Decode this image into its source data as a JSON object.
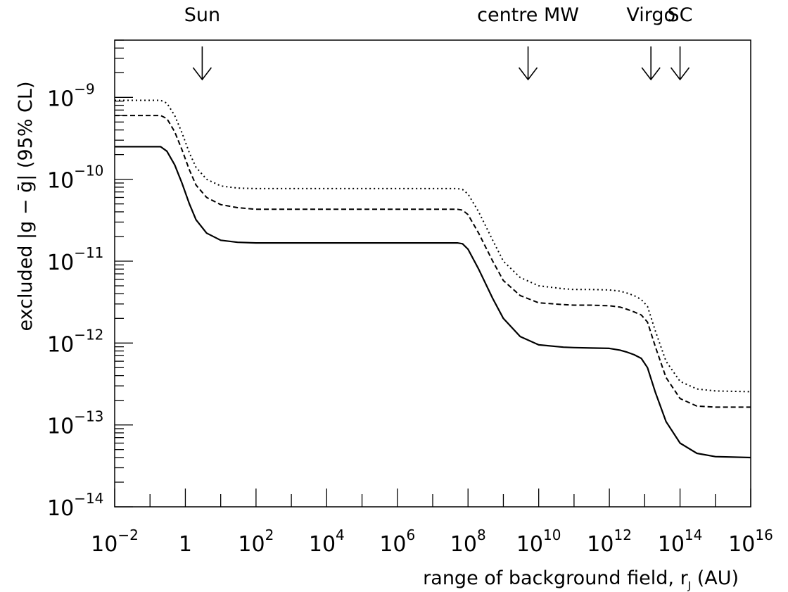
{
  "chart_data": {
    "type": "line",
    "xlabel": "range of background field, r",
    "xlabel_subscript": "J",
    "xlabel_unit": " (AU)",
    "ylabel": "excluded |g − ḡ| (95% CL)",
    "x_scale": "log",
    "y_scale": "log",
    "xlim": [
      0.01,
      1e+16
    ],
    "ylim": [
      1e-14,
      5e-09
    ],
    "grid": false,
    "x_ticks": [
      {
        "base": "10",
        "exp": "−2"
      },
      {
        "base": "1",
        "exp": ""
      },
      {
        "base": "10",
        "exp": "2"
      },
      {
        "base": "10",
        "exp": "4"
      },
      {
        "base": "10",
        "exp": "6"
      },
      {
        "base": "10",
        "exp": "8"
      },
      {
        "base": "10",
        "exp": "10"
      },
      {
        "base": "10",
        "exp": "12"
      },
      {
        "base": "10",
        "exp": "14"
      },
      {
        "base": "10",
        "exp": "16"
      }
    ],
    "y_ticks": [
      {
        "base": "10",
        "exp": "−9"
      },
      {
        "base": "10",
        "exp": "−10"
      },
      {
        "base": "10",
        "exp": "−11"
      },
      {
        "base": "10",
        "exp": "−12"
      },
      {
        "base": "10",
        "exp": "−13"
      },
      {
        "base": "10",
        "exp": "−14"
      }
    ],
    "markers": [
      {
        "label": "Sun",
        "x": 3
      },
      {
        "label": "centre MW",
        "x": 5000000000.0
      },
      {
        "label": "Virgo",
        "x": 15000000000000.0
      },
      {
        "label": "SC",
        "x": 100000000000000.0
      }
    ],
    "series": [
      {
        "style": "solid",
        "x": [
          0.01,
          0.1,
          0.2,
          0.3,
          0.5,
          0.8,
          1.3,
          2,
          4,
          10,
          30,
          100,
          1000.0,
          1000000.0,
          10000000.0,
          30000000.0,
          50000000.0,
          70000000.0,
          100000000.0,
          200000000.0,
          500000000.0,
          1000000000.0,
          3000000000.0,
          10000000000.0,
          50000000000.0,
          100000000000.0,
          300000000000.0,
          1000000000000.0,
          2000000000000.0,
          3000000000000.0,
          5000000000000.0,
          8000000000000.0,
          12000000000000.0,
          20000000000000.0,
          40000000000000.0,
          100000000000000.0,
          300000000000000.0,
          1000000000000000.0,
          1e+16
        ],
        "y": [
          2.5e-10,
          2.5e-10,
          2.5e-10,
          2.2e-10,
          1.5e-10,
          9e-11,
          5e-11,
          3.2e-11,
          2.2e-11,
          1.8e-11,
          1.7e-11,
          1.67e-11,
          1.67e-11,
          1.67e-11,
          1.67e-11,
          1.67e-11,
          1.67e-11,
          1.63e-11,
          1.4e-11,
          8e-12,
          3.5e-12,
          2e-12,
          1.2e-12,
          9.5e-13,
          8.9e-13,
          8.8e-13,
          8.7e-13,
          8.6e-13,
          8.2e-13,
          7.8e-13,
          7.2e-13,
          6.5e-13,
          5e-13,
          2.5e-13,
          1.1e-13,
          6e-14,
          4.5e-14,
          4.1e-14,
          4e-14
        ]
      },
      {
        "style": "dashed",
        "x": [
          0.01,
          0.1,
          0.2,
          0.3,
          0.5,
          0.8,
          1.3,
          2,
          4,
          10,
          30,
          100,
          1000.0,
          1000000.0,
          10000000.0,
          30000000.0,
          50000000.0,
          70000000.0,
          100000000.0,
          200000000.0,
          500000000.0,
          1000000000.0,
          3000000000.0,
          10000000000.0,
          50000000000.0,
          100000000000.0,
          300000000000.0,
          1000000000000.0,
          2000000000000.0,
          3000000000000.0,
          5000000000000.0,
          8000000000000.0,
          12000000000000.0,
          20000000000000.0,
          40000000000000.0,
          100000000000000.0,
          300000000000000.0,
          1000000000000000.0,
          1e+16
        ],
        "y": [
          6e-10,
          6e-10,
          6e-10,
          5.5e-10,
          3.8e-10,
          2.3e-10,
          1.3e-10,
          8.5e-11,
          6e-11,
          4.9e-11,
          4.5e-11,
          4.3e-11,
          4.3e-11,
          4.3e-11,
          4.3e-11,
          4.3e-11,
          4.3e-11,
          4.2e-11,
          3.7e-11,
          2.2e-11,
          1e-11,
          5.8e-12,
          3.8e-12,
          3.1e-12,
          2.95e-12,
          2.9e-12,
          2.9e-12,
          2.85e-12,
          2.75e-12,
          2.6e-12,
          2.4e-12,
          2.2e-12,
          1.8e-12,
          9e-13,
          3.8e-13,
          2.1e-13,
          1.7e-13,
          1.65e-13,
          1.65e-13
        ]
      },
      {
        "style": "dotted",
        "x": [
          0.01,
          0.1,
          0.2,
          0.3,
          0.5,
          0.8,
          1.3,
          2,
          4,
          10,
          30,
          100,
          1000.0,
          1000000.0,
          10000000.0,
          30000000.0,
          50000000.0,
          70000000.0,
          100000000.0,
          200000000.0,
          500000000.0,
          1000000000.0,
          3000000000.0,
          10000000000.0,
          50000000000.0,
          100000000000.0,
          300000000000.0,
          1000000000000.0,
          2000000000000.0,
          3000000000000.0,
          5000000000000.0,
          8000000000000.0,
          12000000000000.0,
          20000000000000.0,
          40000000000000.0,
          100000000000000.0,
          300000000000000.0,
          1000000000000000.0,
          1e+16
        ],
        "y": [
          9.2e-10,
          9.2e-10,
          9.2e-10,
          8.5e-10,
          6e-10,
          3.7e-10,
          2.1e-10,
          1.4e-10,
          1e-10,
          8.3e-11,
          7.8e-11,
          7.7e-11,
          7.7e-11,
          7.7e-11,
          7.7e-11,
          7.7e-11,
          7.7e-11,
          7.5e-11,
          6.6e-11,
          4e-11,
          1.8e-11,
          1e-11,
          6.3e-12,
          5e-12,
          4.6e-12,
          4.5e-12,
          4.5e-12,
          4.45e-12,
          4.3e-12,
          4.1e-12,
          3.8e-12,
          3.4e-12,
          2.8e-12,
          1.4e-12,
          6e-13,
          3.4e-13,
          2.75e-13,
          2.6e-13,
          2.55e-13
        ]
      }
    ]
  }
}
